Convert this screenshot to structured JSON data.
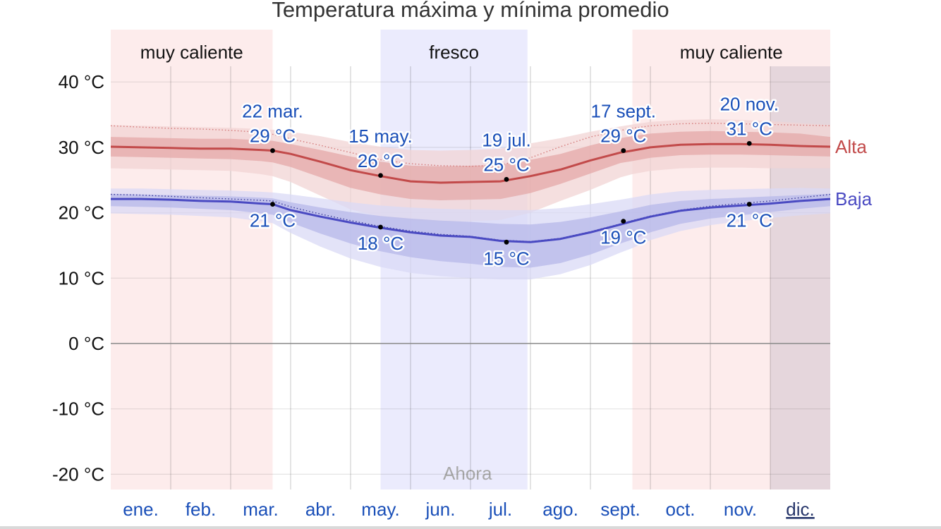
{
  "chart_data": {
    "type": "area",
    "title": "Temperatura máxima y mínima promedio",
    "unit": "°C",
    "ylim": [
      -22.5,
      42
    ],
    "yticks": [
      {
        "value": 40,
        "label": "40 °C"
      },
      {
        "value": 30,
        "label": "30 °C"
      },
      {
        "value": 20,
        "label": "20 °C"
      },
      {
        "value": 10,
        "label": "10 °C"
      },
      {
        "value": 0,
        "label": "0 °C"
      },
      {
        "value": -10,
        "label": "-10 °C"
      },
      {
        "value": -20,
        "label": "-20 °C"
      }
    ],
    "months": [
      "ene.",
      "feb.",
      "mar.",
      "abr.",
      "may.",
      "jun.",
      "jul.",
      "ago.",
      "sept.",
      "oct.",
      "nov.",
      "dic."
    ],
    "current_month_index": 11,
    "now_label": "Ahora",
    "seasons": [
      {
        "label": "muy caliente",
        "kind": "hot",
        "from_month": 0.0,
        "to_month": 2.7
      },
      {
        "label": "fresco",
        "kind": "cool",
        "from_month": 4.5,
        "to_month": 6.95
      },
      {
        "label": "muy caliente",
        "kind": "hot",
        "from_month": 8.7,
        "to_month": 12.0
      }
    ],
    "x_month": [
      0.0,
      0.5,
      1.0,
      1.5,
      2.0,
      2.5,
      2.7,
      3.0,
      3.5,
      4.0,
      4.5,
      5.0,
      5.5,
      6.0,
      6.5,
      7.0,
      7.5,
      8.0,
      8.5,
      8.7,
      9.0,
      9.5,
      10.0,
      10.5,
      11.0,
      11.5,
      12.0
    ],
    "series": [
      {
        "name": "Alta",
        "color": "#c24a4a",
        "dotted": "#d47a7a",
        "band_inner": "#e4a8a8",
        "band_outer": "#f2d4d4",
        "values": [
          30.1,
          30.0,
          29.9,
          29.8,
          29.8,
          29.6,
          29.5,
          29.0,
          27.8,
          26.5,
          25.6,
          24.8,
          24.6,
          24.7,
          24.8,
          25.6,
          26.6,
          28.0,
          29.2,
          29.5,
          30.0,
          30.4,
          30.5,
          30.5,
          30.4,
          30.2,
          30.1
        ],
        "dotted_values": [
          33.3,
          33.1,
          32.9,
          32.8,
          32.6,
          32.3,
          32.0,
          31.3,
          30.3,
          29.2,
          28.1,
          27.5,
          27.2,
          27.1,
          27.3,
          28.4,
          30.1,
          31.6,
          32.6,
          32.9,
          33.3,
          33.6,
          33.7,
          33.6,
          33.5,
          33.4,
          33.3
        ],
        "p25": [
          28.6,
          28.5,
          28.4,
          28.3,
          28.2,
          27.9,
          27.7,
          27.0,
          25.4,
          23.8,
          22.8,
          22.1,
          21.9,
          22.0,
          22.1,
          23.0,
          24.4,
          26.0,
          27.6,
          27.9,
          28.4,
          28.8,
          28.9,
          28.9,
          28.8,
          28.7,
          28.6
        ],
        "p75": [
          31.6,
          31.5,
          31.4,
          31.3,
          31.3,
          31.1,
          31.0,
          30.5,
          29.6,
          28.6,
          27.8,
          27.2,
          27.1,
          27.2,
          27.3,
          28.1,
          29.0,
          30.3,
          31.4,
          31.7,
          32.1,
          32.4,
          32.5,
          32.4,
          32.3,
          32.1,
          31.6
        ],
        "p10": [
          26.8,
          26.7,
          26.6,
          26.5,
          26.4,
          25.9,
          25.6,
          24.7,
          22.6,
          20.5,
          19.4,
          18.8,
          18.6,
          18.7,
          18.9,
          20.0,
          21.8,
          23.5,
          25.4,
          25.9,
          26.4,
          26.8,
          26.9,
          26.9,
          26.8,
          26.8,
          26.8
        ],
        "p90": [
          33.4,
          33.3,
          33.2,
          33.1,
          33.0,
          32.8,
          32.7,
          32.4,
          31.7,
          30.8,
          30.1,
          29.6,
          29.5,
          29.6,
          29.8,
          30.6,
          31.4,
          32.4,
          33.2,
          33.5,
          33.9,
          34.2,
          34.3,
          34.2,
          34.0,
          33.7,
          33.4
        ],
        "annotations": [
          {
            "month": 2.7,
            "value": 29.5,
            "date": "22 mar.",
            "label": "29 °C"
          },
          {
            "month": 4.5,
            "value": 25.7,
            "date": "15 may.",
            "label": "26 °C"
          },
          {
            "month": 6.6,
            "value": 25.1,
            "date": "19 jul.",
            "label": "25 °C"
          },
          {
            "month": 8.55,
            "value": 29.5,
            "date": "17 sept.",
            "label": "29 °C"
          },
          {
            "month": 10.65,
            "value": 30.6,
            "date": "20 nov.",
            "label": "31 °C"
          }
        ]
      },
      {
        "name": "Baja",
        "color": "#4a4ac2",
        "dotted": "#3a3a9a",
        "band_inner": "#b7b8ea",
        "band_outer": "#d9daf5",
        "values": [
          22.1,
          22.1,
          22.0,
          21.8,
          21.7,
          21.4,
          21.3,
          20.4,
          19.4,
          18.5,
          17.7,
          17.0,
          16.5,
          16.3,
          15.7,
          15.5,
          16.0,
          17.0,
          18.2,
          18.7,
          19.4,
          20.3,
          20.8,
          21.1,
          21.4,
          21.8,
          22.1
        ],
        "dotted_values": [
          22.8,
          22.7,
          22.5,
          22.3,
          22.1,
          21.9,
          21.8,
          20.9,
          19.8,
          18.8,
          17.9,
          17.2,
          16.7,
          16.4,
          15.8,
          15.6,
          16.1,
          17.1,
          18.3,
          18.8,
          19.5,
          20.4,
          21.0,
          21.4,
          21.8,
          22.3,
          22.8
        ],
        "p25": [
          21.0,
          20.9,
          20.8,
          20.6,
          20.4,
          19.9,
          19.7,
          18.5,
          16.8,
          15.3,
          14.1,
          13.2,
          12.6,
          12.2,
          11.7,
          11.6,
          12.3,
          13.6,
          15.3,
          15.9,
          17.0,
          18.3,
          19.1,
          19.6,
          20.1,
          20.6,
          21.0
        ],
        "p75": [
          22.9,
          22.8,
          22.7,
          22.6,
          22.5,
          22.3,
          22.2,
          21.6,
          20.8,
          20.1,
          19.5,
          19.1,
          18.8,
          18.6,
          18.3,
          18.2,
          18.6,
          19.3,
          20.2,
          20.6,
          21.2,
          21.8,
          22.1,
          22.3,
          22.5,
          22.7,
          22.9
        ],
        "p10": [
          19.9,
          19.8,
          19.7,
          19.5,
          19.3,
          18.7,
          18.4,
          16.9,
          14.8,
          13.0,
          11.7,
          10.8,
          10.3,
          10.0,
          9.8,
          9.8,
          10.6,
          12.0,
          13.9,
          14.6,
          15.8,
          17.2,
          18.1,
          18.7,
          19.2,
          19.6,
          19.9
        ],
        "p90": [
          23.7,
          23.7,
          23.6,
          23.5,
          23.4,
          23.2,
          23.1,
          22.8,
          22.2,
          21.6,
          21.1,
          20.8,
          20.6,
          20.5,
          20.4,
          20.4,
          20.7,
          21.3,
          22.0,
          22.3,
          22.8,
          23.3,
          23.5,
          23.6,
          23.7,
          23.8,
          23.7
        ],
        "annotations": [
          {
            "month": 2.7,
            "value": 21.3,
            "label": "21 °C"
          },
          {
            "month": 4.5,
            "value": 17.8,
            "label": "18 °C"
          },
          {
            "month": 6.6,
            "value": 15.5,
            "label": "15 °C"
          },
          {
            "month": 8.55,
            "value": 18.7,
            "label": "19 °C"
          },
          {
            "month": 10.65,
            "value": 21.3,
            "label": "21 °C"
          }
        ]
      }
    ]
  }
}
